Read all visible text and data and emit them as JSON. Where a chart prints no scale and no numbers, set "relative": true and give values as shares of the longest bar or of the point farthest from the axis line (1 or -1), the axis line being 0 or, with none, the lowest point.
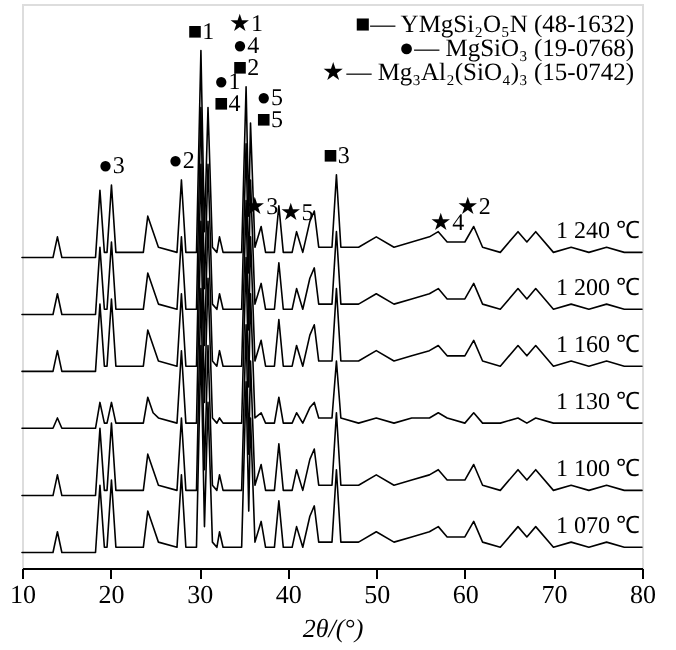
{
  "chart_data": {
    "type": "line",
    "relative": true,
    "xlabel": "2θ/(°)",
    "xlim": [
      10,
      80
    ],
    "xticks": [
      10,
      20,
      30,
      40,
      50,
      60,
      70,
      80
    ],
    "grid": false,
    "legend": false,
    "marker": "none",
    "line_style": "solid",
    "x": [
      10,
      13.5,
      14,
      14.5,
      18.3,
      18.8,
      19.3,
      19.6,
      20.1,
      20.6,
      23.7,
      24.2,
      24.8,
      25.4,
      27.5,
      28,
      28.5,
      29.7,
      30.2,
      30.6,
      31,
      31.5,
      32,
      32.3,
      32.7,
      34.8,
      35.3,
      35.6,
      35.8,
      36.3,
      37,
      37.5,
      38.5,
      39,
      39.5,
      40.5,
      41,
      41.7,
      42.5,
      43,
      43.5,
      45,
      45.5,
      46,
      48,
      50,
      52,
      54,
      56,
      57,
      58,
      60,
      61,
      62,
      64,
      66,
      67,
      68,
      70,
      72,
      74,
      76,
      78,
      80
    ],
    "series": [
      {
        "name": "1 070 ℃",
        "color": "#000000",
        "values": [
          0.03,
          0.03,
          0.07,
          0.03,
          0.03,
          0.16,
          0.04,
          0.04,
          0.17,
          0.04,
          0.04,
          0.11,
          0.08,
          0.05,
          0.04,
          0.18,
          0.04,
          0.04,
          0.43,
          0.08,
          0.32,
          0.05,
          0.04,
          0.07,
          0.04,
          0.04,
          0.36,
          0.11,
          0.29,
          0.05,
          0.09,
          0.04,
          0.04,
          0.13,
          0.04,
          0.04,
          0.08,
          0.04,
          0.1,
          0.12,
          0.05,
          0.05,
          0.19,
          0.05,
          0.05,
          0.07,
          0.05,
          0.06,
          0.07,
          0.08,
          0.06,
          0.06,
          0.09,
          0.05,
          0.04,
          0.08,
          0.06,
          0.08,
          0.04,
          0.05,
          0.04,
          0.05,
          0.04,
          0.04
        ]
      },
      {
        "name": "1 100 ℃",
        "color": "#000000",
        "values": [
          0.14,
          0.14,
          0.18,
          0.14,
          0.14,
          0.27,
          0.15,
          0.15,
          0.28,
          0.15,
          0.15,
          0.22,
          0.19,
          0.16,
          0.15,
          0.29,
          0.15,
          0.15,
          0.54,
          0.19,
          0.43,
          0.16,
          0.15,
          0.18,
          0.15,
          0.15,
          0.47,
          0.22,
          0.4,
          0.16,
          0.2,
          0.15,
          0.15,
          0.24,
          0.15,
          0.15,
          0.19,
          0.15,
          0.21,
          0.23,
          0.16,
          0.16,
          0.3,
          0.16,
          0.16,
          0.18,
          0.16,
          0.17,
          0.18,
          0.19,
          0.17,
          0.17,
          0.2,
          0.16,
          0.15,
          0.19,
          0.17,
          0.19,
          0.15,
          0.16,
          0.15,
          0.16,
          0.15,
          0.15
        ]
      },
      {
        "name": "1 130 ℃",
        "color": "#000000",
        "values": [
          0.27,
          0.27,
          0.29,
          0.27,
          0.27,
          0.32,
          0.28,
          0.28,
          0.32,
          0.28,
          0.28,
          0.33,
          0.3,
          0.29,
          0.28,
          0.42,
          0.28,
          0.28,
          0.67,
          0.32,
          0.56,
          0.29,
          0.28,
          0.29,
          0.28,
          0.28,
          0.6,
          0.35,
          0.53,
          0.29,
          0.3,
          0.28,
          0.28,
          0.33,
          0.28,
          0.28,
          0.3,
          0.28,
          0.31,
          0.32,
          0.29,
          0.29,
          0.4,
          0.29,
          0.28,
          0.29,
          0.28,
          0.29,
          0.29,
          0.3,
          0.29,
          0.28,
          0.3,
          0.28,
          0.28,
          0.29,
          0.28,
          0.29,
          0.28,
          0.28,
          0.28,
          0.28,
          0.28,
          0.28
        ]
      },
      {
        "name": "1 160 ℃",
        "color": "#000000",
        "values": [
          0.38,
          0.38,
          0.42,
          0.38,
          0.38,
          0.51,
          0.39,
          0.39,
          0.52,
          0.39,
          0.39,
          0.46,
          0.43,
          0.4,
          0.39,
          0.53,
          0.39,
          0.39,
          0.78,
          0.43,
          0.67,
          0.4,
          0.39,
          0.42,
          0.39,
          0.39,
          0.71,
          0.46,
          0.64,
          0.4,
          0.44,
          0.39,
          0.39,
          0.48,
          0.39,
          0.39,
          0.43,
          0.39,
          0.45,
          0.47,
          0.4,
          0.4,
          0.54,
          0.4,
          0.4,
          0.42,
          0.4,
          0.41,
          0.42,
          0.43,
          0.41,
          0.41,
          0.44,
          0.4,
          0.39,
          0.43,
          0.41,
          0.43,
          0.39,
          0.4,
          0.39,
          0.4,
          0.39,
          0.39
        ]
      },
      {
        "name": "1 200 ℃",
        "color": "#000000",
        "values": [
          0.49,
          0.49,
          0.53,
          0.49,
          0.49,
          0.62,
          0.5,
          0.5,
          0.63,
          0.5,
          0.5,
          0.57,
          0.54,
          0.51,
          0.5,
          0.64,
          0.5,
          0.5,
          0.89,
          0.54,
          0.78,
          0.51,
          0.5,
          0.53,
          0.5,
          0.5,
          0.82,
          0.57,
          0.75,
          0.51,
          0.55,
          0.5,
          0.5,
          0.59,
          0.5,
          0.5,
          0.54,
          0.5,
          0.56,
          0.58,
          0.51,
          0.51,
          0.65,
          0.51,
          0.51,
          0.53,
          0.51,
          0.52,
          0.53,
          0.54,
          0.52,
          0.52,
          0.55,
          0.51,
          0.5,
          0.54,
          0.52,
          0.54,
          0.5,
          0.51,
          0.5,
          0.51,
          0.5,
          0.5
        ]
      },
      {
        "name": "1 240 ℃",
        "color": "#000000",
        "values": [
          0.6,
          0.6,
          0.64,
          0.6,
          0.6,
          0.73,
          0.61,
          0.61,
          0.74,
          0.61,
          0.61,
          0.68,
          0.65,
          0.62,
          0.61,
          0.75,
          0.61,
          0.61,
          1.0,
          0.65,
          0.89,
          0.62,
          0.61,
          0.64,
          0.61,
          0.61,
          0.93,
          0.68,
          0.86,
          0.62,
          0.66,
          0.61,
          0.61,
          0.7,
          0.61,
          0.61,
          0.65,
          0.61,
          0.67,
          0.69,
          0.62,
          0.62,
          0.76,
          0.62,
          0.62,
          0.64,
          0.62,
          0.63,
          0.64,
          0.65,
          0.63,
          0.63,
          0.66,
          0.62,
          0.61,
          0.65,
          0.63,
          0.65,
          0.61,
          0.62,
          0.61,
          0.62,
          0.61,
          0.61
        ]
      }
    ],
    "annotations": [
      "■— YMgSi₂O₅N (48-1632)",
      "●— MgSiO₃ (19-0768)",
      "★— Mg₃Al₂(SiO₄)₃ (15-0742)",
      {
        "text": "●3",
        "x": 20.1,
        "y": 0.74
      },
      {
        "text": "●2",
        "x": 28,
        "y": 0.75
      },
      {
        "text": "■1",
        "x": 30.2,
        "y": 1.0
      },
      {
        "text": "●1",
        "x": 31,
        "y": 0.89
      },
      {
        "text": "■4",
        "x": 31,
        "y": 0.89
      },
      {
        "text": "★1",
        "x": 35.3,
        "y": 0.93
      },
      {
        "text": "●4",
        "x": 35.3,
        "y": 0.93
      },
      {
        "text": "■2",
        "x": 35.3,
        "y": 0.93
      },
      {
        "text": "●5",
        "x": 35.8,
        "y": 0.86
      },
      {
        "text": "■5",
        "x": 35.8,
        "y": 0.86
      },
      {
        "text": "★3",
        "x": 37,
        "y": 0.66
      },
      {
        "text": "★5",
        "x": 41,
        "y": 0.65
      },
      {
        "text": "■3",
        "x": 45.5,
        "y": 0.76
      },
      {
        "text": "★4",
        "x": 58,
        "y": 0.63
      },
      {
        "text": "★2",
        "x": 61,
        "y": 0.66
      }
    ]
  }
}
